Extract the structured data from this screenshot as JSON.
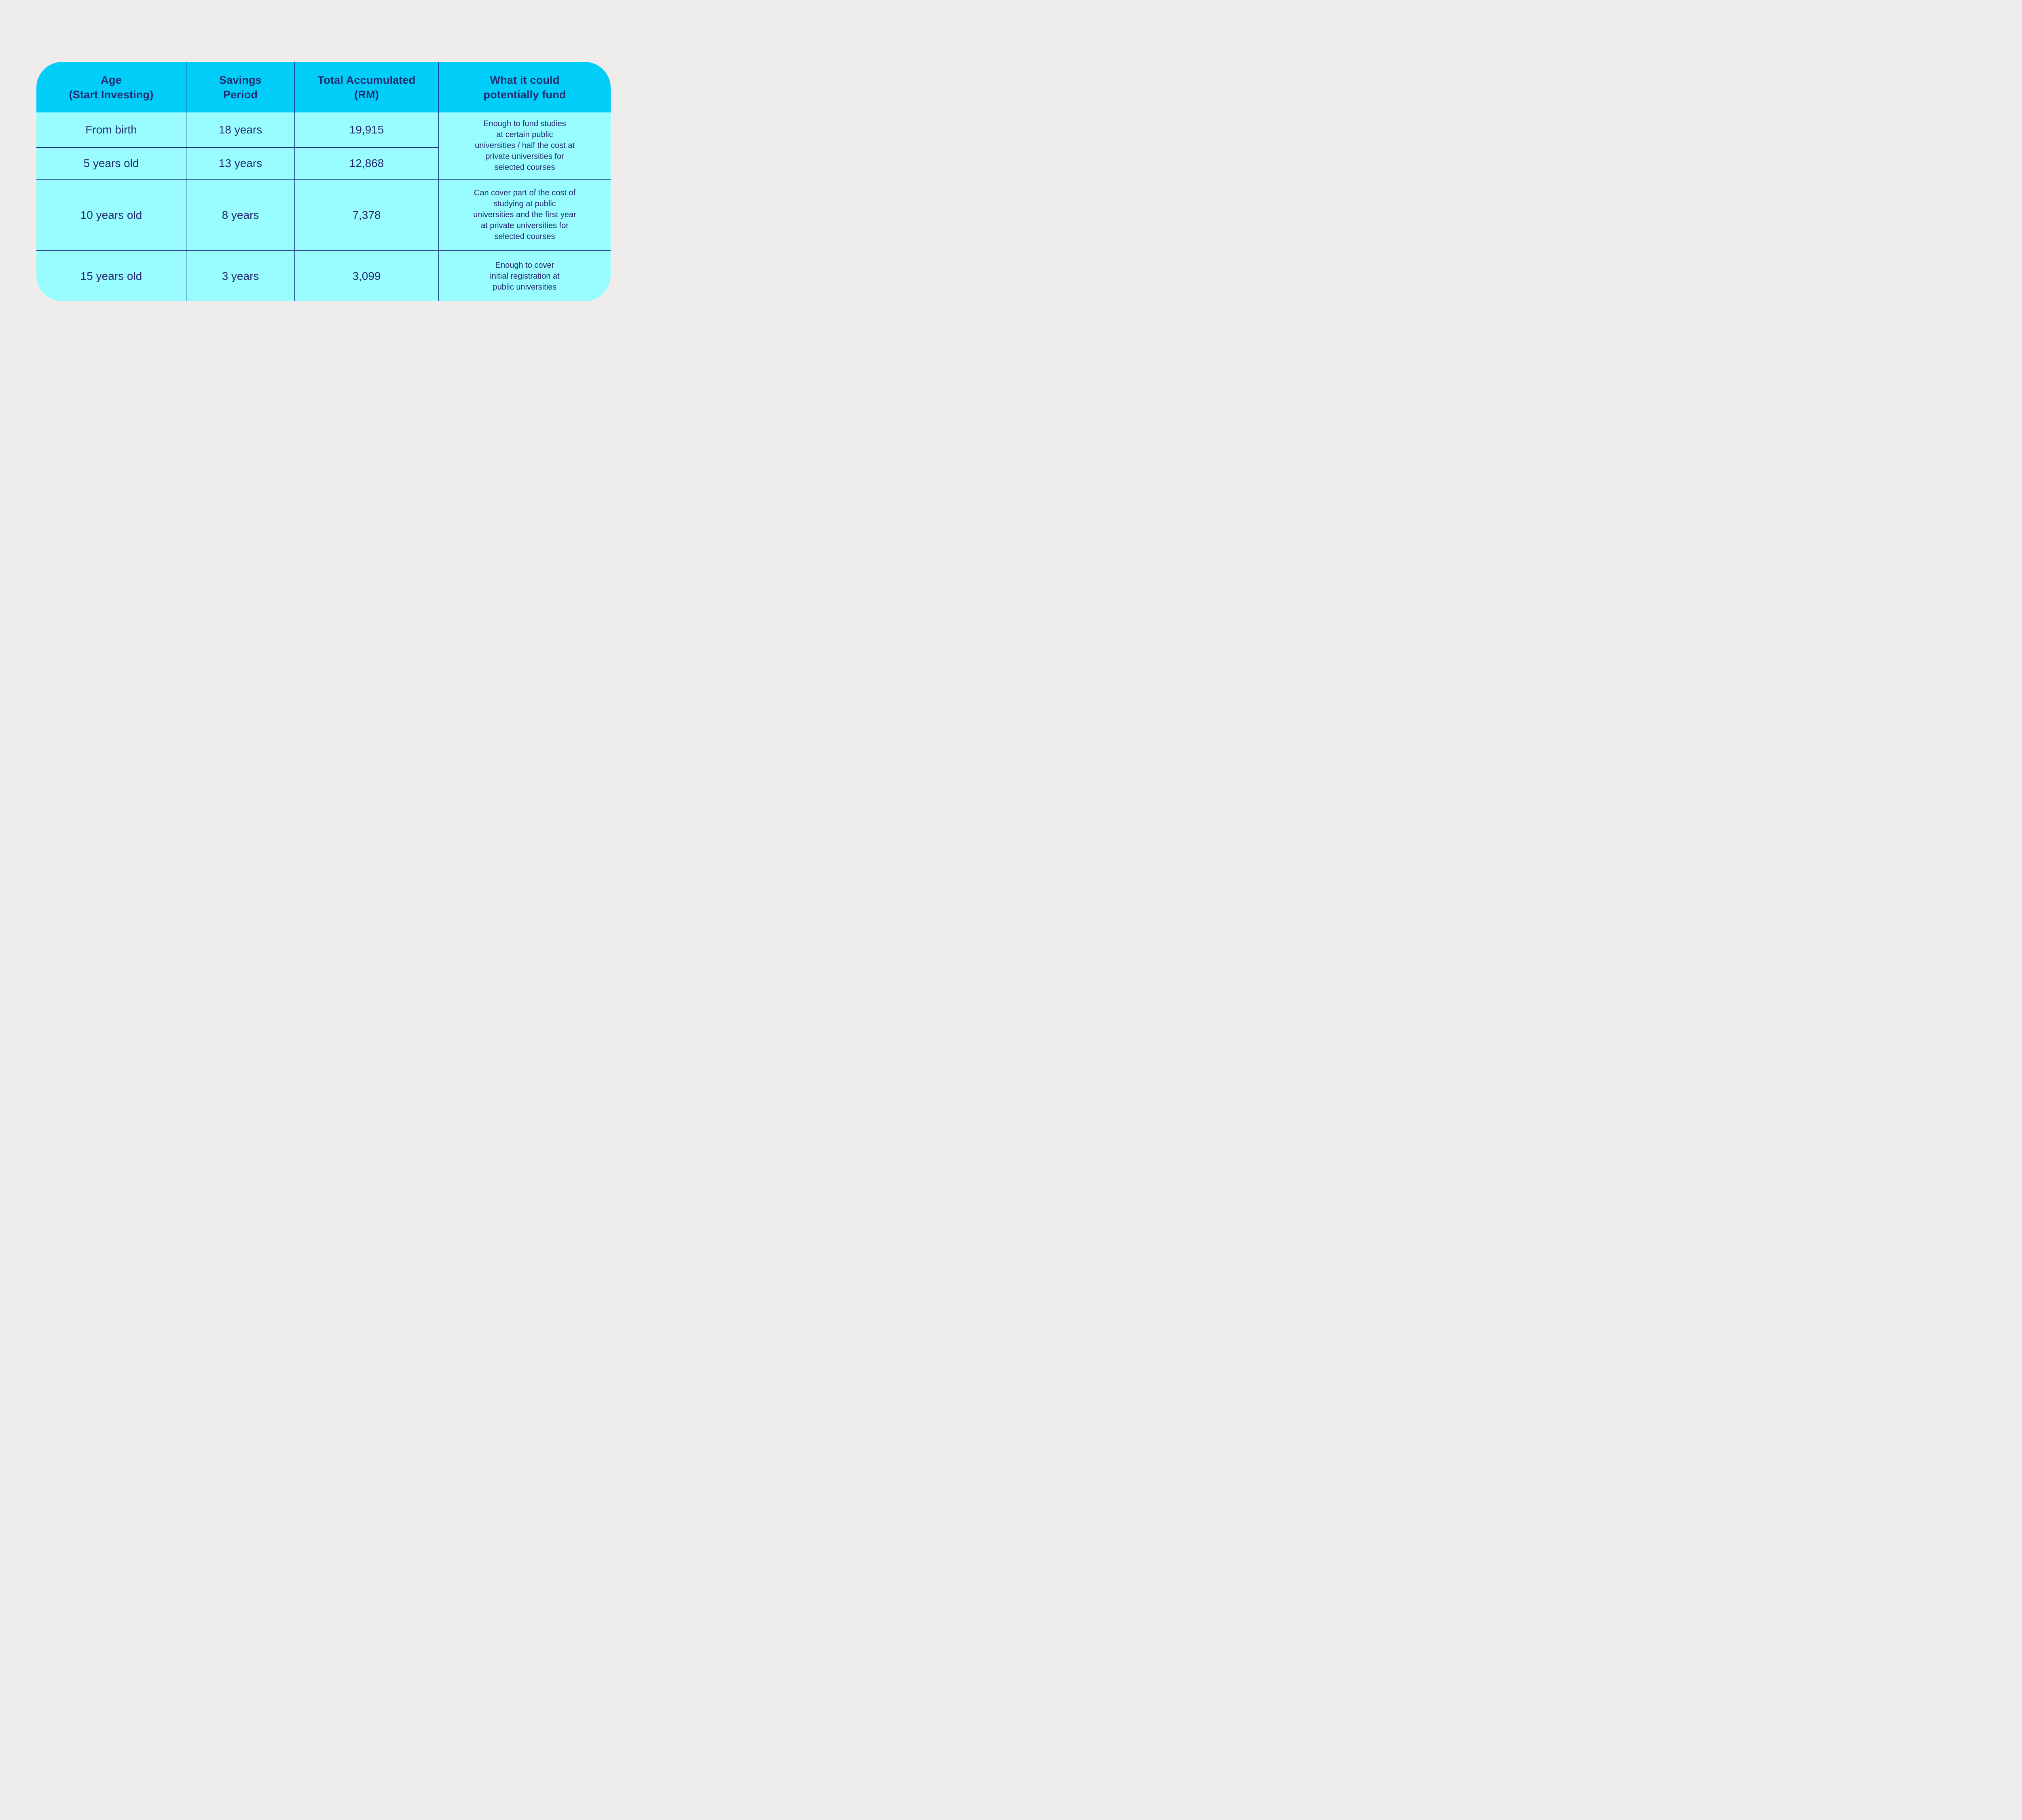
{
  "colors": {
    "page_bg": "#efecec",
    "header_bg": "#00cdf8",
    "row_bg": "#99fdff",
    "text": "#252a70",
    "divider": "#1d3182"
  },
  "chart_data": {
    "type": "table",
    "columns": [
      "Age\n(Start Investing)",
      "Savings\nPeriod",
      "Total Accumulated\n(RM)",
      "What it could\npotentially fund"
    ],
    "rows": [
      {
        "age": "From birth",
        "savings_period": "18 years",
        "total_accumulated_rm": "19,915"
      },
      {
        "age": "5 years old",
        "savings_period": "13 years",
        "total_accumulated_rm": "12,868"
      },
      {
        "age": "10 years old",
        "savings_period": "8 years",
        "total_accumulated_rm": "7,378"
      },
      {
        "age": "15 years old",
        "savings_period": "3 years",
        "total_accumulated_rm": "3,099"
      }
    ],
    "fund_notes": [
      {
        "text": "Enough to fund studies\nat certain public\nuniversities / half the cost at\nprivate universities for\nselected courses"
      },
      {
        "text": "Can cover part of the cost of\nstudying at public\nuniversities and the first year\nat private universities for\nselected courses"
      },
      {
        "text": "Enough to cover\ninitial registration at\npublic universities"
      }
    ]
  }
}
